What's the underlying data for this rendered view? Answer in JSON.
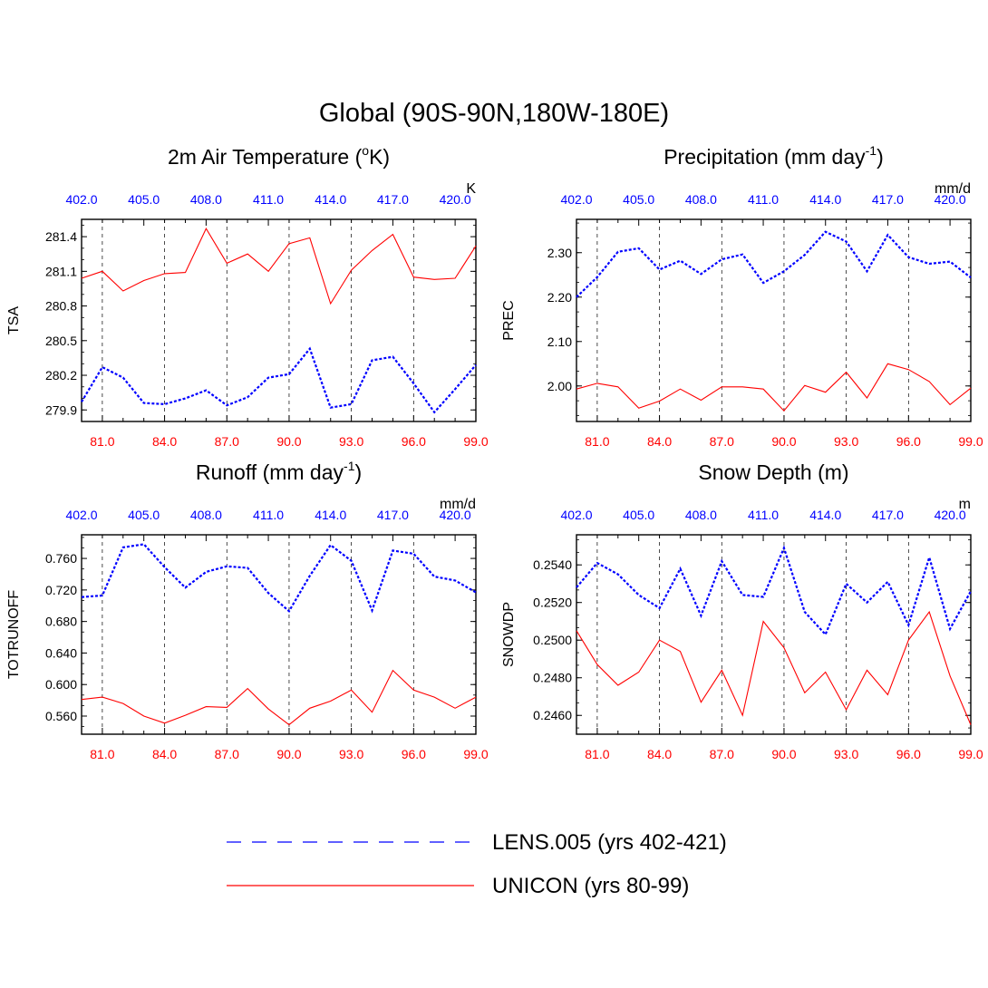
{
  "figure": {
    "main_title": "Global (90S-90N,180W-180E)",
    "legend": [
      {
        "label": "LENS.005 (yrs 402-421)",
        "color": "#0000ff",
        "style": "dashed"
      },
      {
        "label": "UNICON (yrs 80-99)",
        "color": "#ff0000",
        "style": "solid"
      }
    ]
  },
  "chart_data": [
    {
      "type": "line",
      "title": "2m Air Temperature (",
      "title_sup1": "o",
      "title_after_sup1": "K)",
      "title_sup2": "",
      "title_after_sup2": "",
      "units": "K",
      "ylabel": "TSA",
      "ylim": [
        279.8,
        281.55
      ],
      "yticks": [
        279.9,
        280.2,
        280.5,
        280.8,
        281.1,
        281.4
      ],
      "ytick_labels": [
        "279.9",
        "280.2",
        "280.5",
        "280.8",
        "281.1",
        "281.4"
      ],
      "bottom_axis": {
        "range": [
          80,
          99
        ],
        "ticks": [
          81,
          84,
          87,
          90,
          93,
          96,
          99
        ],
        "tick_labels": [
          "81.0",
          "84.0",
          "87.0",
          "90.0",
          "93.0",
          "96.0",
          "99.0"
        ]
      },
      "top_axis": {
        "range": [
          402,
          421
        ],
        "ticks": [
          402,
          405,
          408,
          411,
          414,
          417,
          420
        ],
        "tick_labels": [
          "402.0",
          "405.0",
          "408.0",
          "411.0",
          "414.0",
          "417.0",
          "420.0"
        ]
      },
      "series": [
        {
          "name": "LENS.005 (yrs 402-421)",
          "axis": "top",
          "x": [
            402,
            403,
            404,
            405,
            406,
            407,
            408,
            409,
            410,
            411,
            412,
            413,
            414,
            415,
            416,
            417,
            418,
            419,
            420,
            421
          ],
          "values": [
            279.97,
            280.27,
            280.18,
            279.96,
            279.95,
            280.0,
            280.07,
            279.94,
            280.01,
            280.18,
            280.21,
            280.43,
            279.92,
            279.95,
            280.33,
            280.36,
            280.13,
            279.88,
            280.08,
            280.29
          ]
        },
        {
          "name": "UNICON (yrs 80-99)",
          "axis": "bottom",
          "x": [
            80,
            81,
            82,
            83,
            84,
            85,
            86,
            87,
            88,
            89,
            90,
            91,
            92,
            93,
            94,
            95,
            96,
            97,
            98,
            99
          ],
          "values": [
            281.04,
            281.1,
            280.93,
            281.02,
            281.08,
            281.09,
            281.47,
            281.17,
            281.25,
            281.1,
            281.34,
            281.39,
            280.82,
            281.11,
            281.28,
            281.42,
            281.05,
            281.03,
            281.04,
            281.32
          ]
        }
      ]
    },
    {
      "type": "line",
      "title": "Precipitation (mm day",
      "title_sup1": "-1",
      "title_after_sup1": ")",
      "title_sup2": "",
      "title_after_sup2": "",
      "units": "mm/d",
      "ylabel": "PREC",
      "ylim": [
        1.92,
        2.375
      ],
      "yticks": [
        2.0,
        2.1,
        2.2,
        2.3
      ],
      "ytick_labels": [
        "2.00",
        "2.10",
        "2.20",
        "2.30"
      ],
      "bottom_axis": {
        "range": [
          80,
          99
        ],
        "ticks": [
          81,
          84,
          87,
          90,
          93,
          96,
          99
        ],
        "tick_labels": [
          "81.0",
          "84.0",
          "87.0",
          "90.0",
          "93.0",
          "96.0",
          "99.0"
        ]
      },
      "top_axis": {
        "range": [
          402,
          421
        ],
        "ticks": [
          402,
          405,
          408,
          411,
          414,
          417,
          420
        ],
        "tick_labels": [
          "402.0",
          "405.0",
          "408.0",
          "411.0",
          "414.0",
          "417.0",
          "420.0"
        ]
      },
      "series": [
        {
          "name": "LENS.005 (yrs 402-421)",
          "axis": "top",
          "x": [
            402,
            403,
            404,
            405,
            406,
            407,
            408,
            409,
            410,
            411,
            412,
            413,
            414,
            415,
            416,
            417,
            418,
            419,
            420,
            421
          ],
          "values": [
            2.2,
            2.245,
            2.302,
            2.31,
            2.262,
            2.282,
            2.252,
            2.285,
            2.296,
            2.232,
            2.258,
            2.295,
            2.347,
            2.325,
            2.258,
            2.34,
            2.29,
            2.275,
            2.28,
            2.244
          ]
        },
        {
          "name": "UNICON (yrs 80-99)",
          "axis": "bottom",
          "x": [
            80,
            81,
            82,
            83,
            84,
            85,
            86,
            87,
            88,
            89,
            90,
            91,
            92,
            93,
            94,
            95,
            96,
            97,
            98,
            99
          ],
          "values": [
            1.993,
            2.006,
            1.998,
            1.95,
            1.966,
            1.993,
            1.968,
            1.998,
            1.998,
            1.993,
            1.944,
            2.001,
            1.986,
            2.031,
            1.973,
            2.05,
            2.037,
            2.01,
            1.958,
            1.995
          ]
        }
      ]
    },
    {
      "type": "line",
      "title": "Runoff (mm day",
      "title_sup1": "-1",
      "title_after_sup1": ")",
      "title_sup2": "",
      "title_after_sup2": "",
      "units": "mm/d",
      "ylabel": "TOTRUNOFF",
      "ylim": [
        0.537,
        0.79
      ],
      "yticks": [
        0.56,
        0.6,
        0.64,
        0.68,
        0.72,
        0.76
      ],
      "ytick_labels": [
        "0.560",
        "0.600",
        "0.640",
        "0.680",
        "0.720",
        "0.760"
      ],
      "bottom_axis": {
        "range": [
          80,
          99
        ],
        "ticks": [
          81,
          84,
          87,
          90,
          93,
          96,
          99
        ],
        "tick_labels": [
          "81.0",
          "84.0",
          "87.0",
          "90.0",
          "93.0",
          "96.0",
          "99.0"
        ]
      },
      "top_axis": {
        "range": [
          402,
          421
        ],
        "ticks": [
          402,
          405,
          408,
          411,
          414,
          417,
          420
        ],
        "tick_labels": [
          "402.0",
          "405.0",
          "408.0",
          "411.0",
          "414.0",
          "417.0",
          "420.0"
        ]
      },
      "series": [
        {
          "name": "LENS.005 (yrs 402-421)",
          "axis": "top",
          "x": [
            402,
            403,
            404,
            405,
            406,
            407,
            408,
            409,
            410,
            411,
            412,
            413,
            414,
            415,
            416,
            417,
            418,
            419,
            420,
            421
          ],
          "values": [
            0.711,
            0.713,
            0.774,
            0.778,
            0.749,
            0.723,
            0.743,
            0.75,
            0.748,
            0.716,
            0.693,
            0.738,
            0.777,
            0.757,
            0.694,
            0.77,
            0.766,
            0.737,
            0.732,
            0.717
          ]
        },
        {
          "name": "UNICON (yrs 80-99)",
          "axis": "bottom",
          "x": [
            80,
            81,
            82,
            83,
            84,
            85,
            86,
            87,
            88,
            89,
            90,
            91,
            92,
            93,
            94,
            95,
            96,
            97,
            98,
            99
          ],
          "values": [
            0.581,
            0.584,
            0.576,
            0.56,
            0.551,
            0.561,
            0.572,
            0.571,
            0.595,
            0.569,
            0.549,
            0.57,
            0.579,
            0.593,
            0.565,
            0.618,
            0.593,
            0.584,
            0.57,
            0.584
          ]
        }
      ]
    },
    {
      "type": "line",
      "title": "Snow Depth (m)",
      "title_sup1": "",
      "title_after_sup1": "",
      "title_sup2": "",
      "title_after_sup2": "",
      "units": "m",
      "ylabel": "SNOWDP",
      "ylim": [
        0.245,
        0.2556
      ],
      "yticks": [
        0.246,
        0.248,
        0.25,
        0.252,
        0.254
      ],
      "ytick_labels": [
        "0.2460",
        "0.2480",
        "0.2500",
        "0.2520",
        "0.2540"
      ],
      "bottom_axis": {
        "range": [
          80,
          99
        ],
        "ticks": [
          81,
          84,
          87,
          90,
          93,
          96,
          99
        ],
        "tick_labels": [
          "81.0",
          "84.0",
          "87.0",
          "90.0",
          "93.0",
          "96.0",
          "99.0"
        ]
      },
      "top_axis": {
        "range": [
          402,
          421
        ],
        "ticks": [
          402,
          405,
          408,
          411,
          414,
          417,
          420
        ],
        "tick_labels": [
          "402.0",
          "405.0",
          "408.0",
          "411.0",
          "414.0",
          "417.0",
          "420.0"
        ]
      },
      "series": [
        {
          "name": "LENS.005 (yrs 402-421)",
          "axis": "top",
          "x": [
            402,
            403,
            404,
            405,
            406,
            407,
            408,
            409,
            410,
            411,
            412,
            413,
            414,
            415,
            416,
            417,
            418,
            419,
            420,
            421
          ],
          "values": [
            0.2528,
            0.2541,
            0.2535,
            0.2524,
            0.2517,
            0.2538,
            0.2513,
            0.2542,
            0.2524,
            0.2523,
            0.2549,
            0.2515,
            0.2503,
            0.253,
            0.252,
            0.2531,
            0.2508,
            0.2544,
            0.2506,
            0.2526
          ]
        },
        {
          "name": "UNICON (yrs 80-99)",
          "axis": "bottom",
          "x": [
            80,
            81,
            82,
            83,
            84,
            85,
            86,
            87,
            88,
            89,
            90,
            91,
            92,
            93,
            94,
            95,
            96,
            97,
            98,
            99
          ],
          "values": [
            0.2505,
            0.2487,
            0.2476,
            0.2483,
            0.25,
            0.2494,
            0.2467,
            0.2484,
            0.246,
            0.251,
            0.2496,
            0.2472,
            0.2483,
            0.2463,
            0.2484,
            0.2471,
            0.25,
            0.2515,
            0.2481,
            0.2455
          ]
        }
      ]
    }
  ]
}
